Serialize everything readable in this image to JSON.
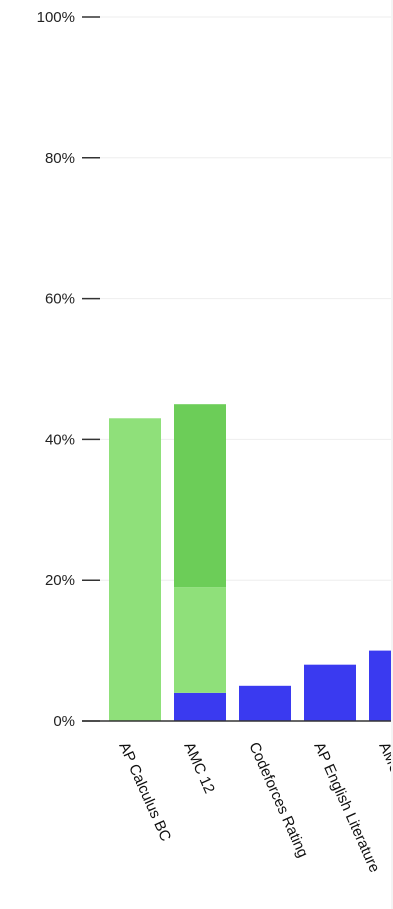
{
  "chart_data": {
    "type": "bar",
    "stacked": true,
    "ylim": [
      0,
      100
    ],
    "yticks": [
      0,
      20,
      40,
      60,
      80,
      100
    ],
    "ytick_labels": [
      "0%",
      "20%",
      "40%",
      "60%",
      "80%",
      "100%"
    ],
    "grid": true,
    "categories": [
      "AP Calculus BC",
      "AMC 12",
      "Codeforces Rating",
      "AP English Literature",
      "AMC"
    ],
    "category_labels": [
      "AP Calculus BC",
      "AMC 12",
      "Codeforces Rating",
      "AP English Literature",
      "AMC"
    ],
    "series": [
      {
        "color": "#3a3af0",
        "values": [
          0,
          4,
          5,
          8,
          10
        ]
      },
      {
        "color": "#8fe07a",
        "values": [
          43,
          15,
          0,
          0,
          0
        ]
      },
      {
        "color": "#6ccd58",
        "values": [
          0,
          26,
          0,
          0,
          0
        ]
      }
    ]
  }
}
